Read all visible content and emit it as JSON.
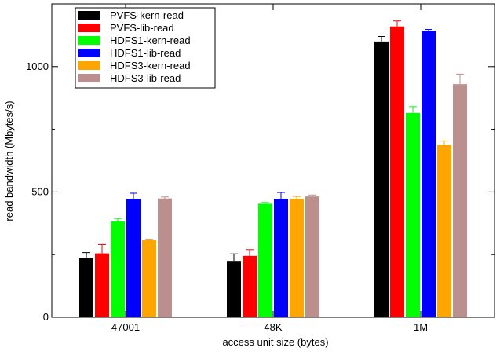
{
  "chart_data": {
    "type": "bar",
    "xlabel": "access unit size (bytes)",
    "ylabel": "read bandwidth (Mbytes/s)",
    "categories": [
      "47001",
      "48K",
      "1M"
    ],
    "ylim": [
      0,
      1250
    ],
    "yticks": [
      0,
      500,
      1000
    ],
    "grid": false,
    "legend_position": "top-left",
    "series": [
      {
        "name": "PVFS-kern-read",
        "color": "#000000",
        "values": [
          238,
          225,
          1100
        ],
        "error": [
          20,
          28,
          20
        ]
      },
      {
        "name": "PVFS-lib-read",
        "color": "#ff0000",
        "values": [
          255,
          245,
          1160
        ],
        "error": [
          35,
          25,
          22
        ]
      },
      {
        "name": "HDFS1-kern-read",
        "color": "#00ff00",
        "values": [
          382,
          453,
          815
        ],
        "error": [
          12,
          5,
          25
        ]
      },
      {
        "name": "HDFS1-lib-read",
        "color": "#0000ff",
        "values": [
          472,
          473,
          1143
        ],
        "error": [
          23,
          25,
          5
        ]
      },
      {
        "name": "HDFS3-kern-read",
        "color": "#ffa500",
        "values": [
          307,
          472,
          688
        ],
        "error": [
          5,
          10,
          15
        ]
      },
      {
        "name": "HDFS3-lib-read",
        "color": "#bc8f8f",
        "values": [
          474,
          482,
          930
        ],
        "error": [
          6,
          6,
          40
        ]
      }
    ]
  }
}
